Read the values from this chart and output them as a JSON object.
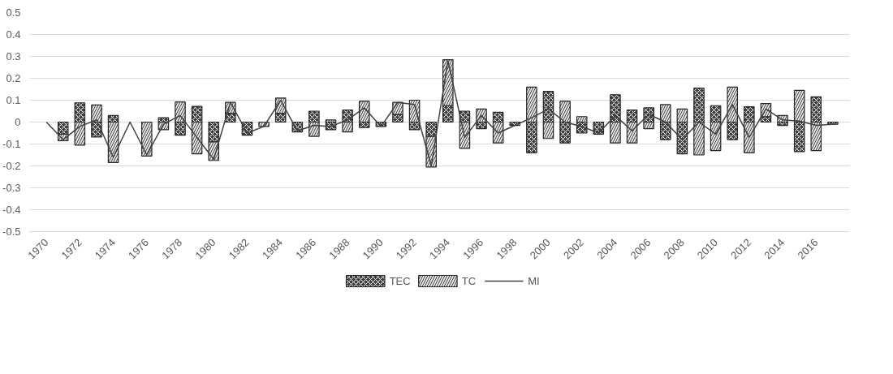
{
  "chart_data": {
    "type": "bar",
    "stacked": true,
    "categories": [
      "1970",
      null,
      "1972",
      null,
      "1974",
      null,
      "1976",
      null,
      "1978",
      null,
      "1980",
      null,
      "1982",
      null,
      "1984",
      null,
      "1986",
      null,
      "1988",
      null,
      "1990",
      null,
      "1992",
      null,
      "1994",
      null,
      "1996",
      null,
      "1998",
      null,
      "2000",
      null,
      "2002",
      null,
      "2004",
      null,
      "2006",
      null,
      "2008",
      null,
      "2010",
      null,
      "2012",
      null,
      "2014",
      null,
      "2016",
      null
    ],
    "series": [
      {
        "name": "TEC",
        "color": "#404040",
        "values": [
          null,
          -0.055,
          0.088,
          -0.068,
          0.03,
          null,
          null,
          0.02,
          -0.06,
          0.072,
          -0.09,
          0.04,
          -0.06,
          null,
          0.04,
          -0.045,
          0.05,
          -0.035,
          0.055,
          -0.025,
          -0.02,
          0.035,
          -0.035,
          -0.065,
          0.075,
          0.05,
          -0.03,
          0.045,
          -0.015,
          -0.14,
          0.14,
          -0.095,
          -0.05,
          -0.055,
          0.125,
          0.055,
          0.065,
          -0.08,
          -0.145,
          0.155,
          0.075,
          -0.08,
          0.07,
          0.025,
          -0.015,
          -0.135,
          0.115,
          -0.01
        ]
      },
      {
        "name": "TC",
        "color": "#e6e6e6",
        "values": [
          null,
          -0.03,
          -0.105,
          0.078,
          -0.185,
          null,
          -0.155,
          -0.035,
          0.092,
          -0.145,
          -0.085,
          0.05,
          null,
          -0.02,
          0.07,
          null,
          -0.065,
          0.01,
          -0.045,
          0.095,
          null,
          0.055,
          0.1,
          -0.14,
          0.21,
          -0.12,
          0.06,
          -0.095,
          null,
          0.16,
          -0.075,
          0.095,
          0.025,
          null,
          -0.095,
          -0.095,
          -0.03,
          0.08,
          0.06,
          -0.15,
          -0.13,
          0.16,
          -0.14,
          0.06,
          0.03,
          0.145,
          -0.13,
          null
        ]
      },
      {
        "name": "MI",
        "type": "line",
        "color": "#404040",
        "values": [
          0,
          -0.08,
          -0.02,
          0.01,
          -0.16,
          0,
          -0.15,
          -0.01,
          0.03,
          -0.07,
          -0.17,
          0.09,
          -0.05,
          -0.02,
          0.1,
          -0.04,
          -0.015,
          -0.02,
          0.01,
          0.065,
          -0.02,
          0.09,
          0.08,
          -0.2,
          0.28,
          -0.07,
          0.03,
          -0.05,
          -0.015,
          0.02,
          0.06,
          0,
          -0.02,
          -0.05,
          0.03,
          -0.04,
          0.035,
          0,
          -0.08,
          0,
          -0.055,
          0.08,
          -0.07,
          0.06,
          0.01,
          0.005,
          -0.015,
          -0.01
        ]
      }
    ],
    "ylim": [
      -0.5,
      0.5
    ],
    "yticks": [
      -0.5,
      -0.4,
      -0.3,
      -0.2,
      -0.1,
      0,
      0.1,
      0.2,
      0.3,
      0.4,
      0.5
    ],
    "grid": "y",
    "legend": "bottom"
  }
}
